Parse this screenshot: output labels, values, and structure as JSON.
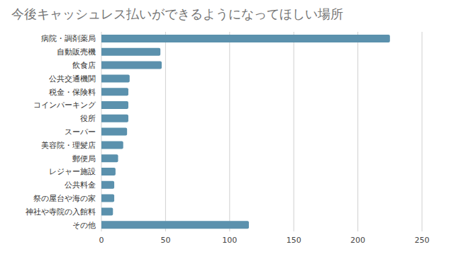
{
  "chart_data": {
    "type": "bar",
    "title": "今後キャッシュレス払いができるようになってほしい場所",
    "orientation": "horizontal",
    "categories": [
      "病院・調剤薬局",
      "自動販売機",
      "飲食店",
      "公共交通機関",
      "税金・保険料",
      "コインパーキング",
      "役所",
      "スーパー",
      "美容院・理髪店",
      "郵便局",
      "レジャー施設",
      "公共料金",
      "祭の屋台や海の家",
      "神社や寺院の入館料",
      "その他"
    ],
    "values": [
      225,
      46,
      47,
      22,
      21,
      21,
      21,
      20,
      17,
      13,
      11,
      10,
      10,
      9,
      115
    ],
    "color": "#5b91ad",
    "xlim": [
      0,
      250
    ],
    "xticks": [
      0,
      50,
      100,
      150,
      200,
      250
    ],
    "grid": true
  }
}
